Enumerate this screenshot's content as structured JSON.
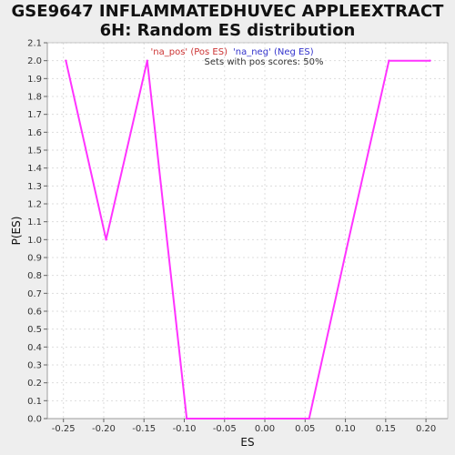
{
  "chart_data": {
    "type": "line",
    "title": "GSE9647 INFLAMMATEDHUVEC APPLEEXTRACT\n6H: Random ES distribution",
    "xlabel": "ES",
    "ylabel": "P(ES)",
    "xlim": [
      -0.27,
      0.227
    ],
    "ylim": [
      0.0,
      2.1
    ],
    "x_ticks": [
      -0.25,
      -0.2,
      -0.15,
      -0.1,
      -0.05,
      0.0,
      0.05,
      0.1,
      0.15,
      0.2
    ],
    "x_tick_labels": [
      "-0.25",
      "-0.20",
      "-0.15",
      "-0.10",
      "-0.05",
      "0.00",
      "0.05",
      "0.10",
      "0.15",
      "0.20"
    ],
    "y_ticks": [
      0.0,
      0.1,
      0.2,
      0.3,
      0.4,
      0.5,
      0.6,
      0.7,
      0.8,
      0.9,
      1.0,
      1.1,
      1.2,
      1.3,
      1.4,
      1.5,
      1.6,
      1.7,
      1.8,
      1.9,
      2.0,
      2.1
    ],
    "y_tick_labels": [
      "0.0",
      "0.1",
      "0.2",
      "0.3",
      "0.4",
      "0.5",
      "0.6",
      "0.7",
      "0.8",
      "0.9",
      "1.0",
      "1.1",
      "1.2",
      "1.3",
      "1.4",
      "1.5",
      "1.6",
      "1.7",
      "1.8",
      "1.9",
      "2.0",
      "2.1"
    ],
    "grid": true,
    "legend_position": "top-center",
    "legend": [
      {
        "label": "'na_pos' (Pos ES)",
        "color": "#cc3333"
      },
      {
        "label": "'na_neg' (Neg ES)",
        "color": "#3333cc"
      }
    ],
    "annotation": "Sets with pos scores: 50%",
    "series": [
      {
        "color": "#ff33ff",
        "x": [
          -0.247,
          -0.197,
          -0.146,
          -0.097,
          -0.046,
          0.005,
          0.055,
          0.104,
          0.154,
          0.205
        ],
        "y": [
          2.0,
          1.0,
          2.0,
          0.0,
          0.0,
          0.0,
          0.0,
          1.0,
          2.0,
          2.0
        ]
      }
    ]
  }
}
